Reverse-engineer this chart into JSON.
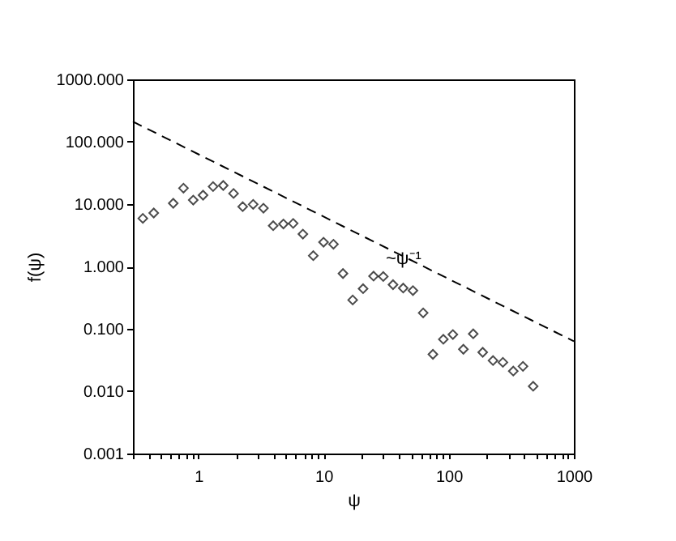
{
  "chart_data": {
    "type": "scatter",
    "xlabel": "ψ",
    "ylabel": "f(ψ)",
    "log": "xy",
    "xlim": [
      0.3,
      1000
    ],
    "ylim": [
      0.001,
      1000
    ],
    "xticks": [
      {
        "value": 0.3,
        "label": null
      },
      {
        "value": 0.4,
        "label": null
      },
      {
        "value": 0.5,
        "label": null
      },
      {
        "value": 0.6,
        "label": null
      },
      {
        "value": 0.7,
        "label": null
      },
      {
        "value": 0.8,
        "label": null
      },
      {
        "value": 0.9,
        "label": null
      },
      1,
      {
        "value": 2,
        "label": null
      },
      {
        "value": 3,
        "label": null
      },
      {
        "value": 4,
        "label": null
      },
      {
        "value": 5,
        "label": null
      },
      {
        "value": 6,
        "label": null
      },
      {
        "value": 7,
        "label": null
      },
      {
        "value": 8,
        "label": null
      },
      {
        "value": 9,
        "label": null
      },
      10,
      {
        "value": 20,
        "label": null
      },
      {
        "value": 30,
        "label": null
      },
      {
        "value": 40,
        "label": null
      },
      {
        "value": 50,
        "label": null
      },
      {
        "value": 60,
        "label": null
      },
      {
        "value": 70,
        "label": null
      },
      {
        "value": 80,
        "label": null
      },
      {
        "value": 90,
        "label": null
      },
      100,
      {
        "value": 200,
        "label": null
      },
      {
        "value": 300,
        "label": null
      },
      {
        "value": 400,
        "label": null
      },
      {
        "value": 500,
        "label": null
      },
      {
        "value": 600,
        "label": null
      },
      {
        "value": 700,
        "label": null
      },
      {
        "value": 800,
        "label": null
      },
      {
        "value": 900,
        "label": null
      },
      1000
    ],
    "yticks": [
      {
        "value": 0.001,
        "label": "0.001"
      },
      {
        "value": 0.01,
        "label": "0.010"
      },
      {
        "value": 0.1,
        "label": "0.100"
      },
      {
        "value": 1,
        "label": "1.000"
      },
      {
        "value": 10,
        "label": "10.000"
      },
      {
        "value": 100,
        "label": "100.000"
      },
      {
        "value": 1000,
        "label": "1000.000"
      }
    ],
    "series": [
      {
        "marker": "diamond",
        "color": "#000000",
        "x": [
          0.36,
          0.44,
          0.63,
          0.76,
          0.91,
          1.09,
          1.31,
          1.58,
          1.91,
          2.26,
          2.74,
          3.31,
          3.96,
          4.78,
          5.72,
          6.84,
          8.28,
          10,
          12,
          14.3,
          17.1,
          20.7,
          25.1,
          30,
          35.9,
          43.3,
          51.8,
          62.5,
          74.8,
          90.6,
          108,
          131,
          157,
          187,
          226,
          271,
          328,
          392,
          473
        ],
        "values": [
          5.9,
          7.2,
          10.3,
          18,
          11.6,
          13.9,
          19.1,
          19.9,
          14.8,
          9.1,
          9.9,
          8.6,
          4.5,
          4.8,
          4.9,
          3.3,
          1.49,
          2.45,
          2.27,
          0.77,
          0.29,
          0.44,
          0.7,
          0.69,
          0.51,
          0.45,
          0.41,
          0.18,
          0.039,
          0.068,
          0.081,
          0.047,
          0.083,
          0.042,
          0.031,
          0.029,
          0.021,
          0.025,
          0.012
        ]
      },
      {
        "type": "line",
        "line_style": "dashed",
        "color": "#000000",
        "x": [
          0.3,
          1000
        ],
        "values": [
          210,
          0.063
        ]
      }
    ],
    "annotations": [
      "~ψ⁻¹"
    ]
  }
}
